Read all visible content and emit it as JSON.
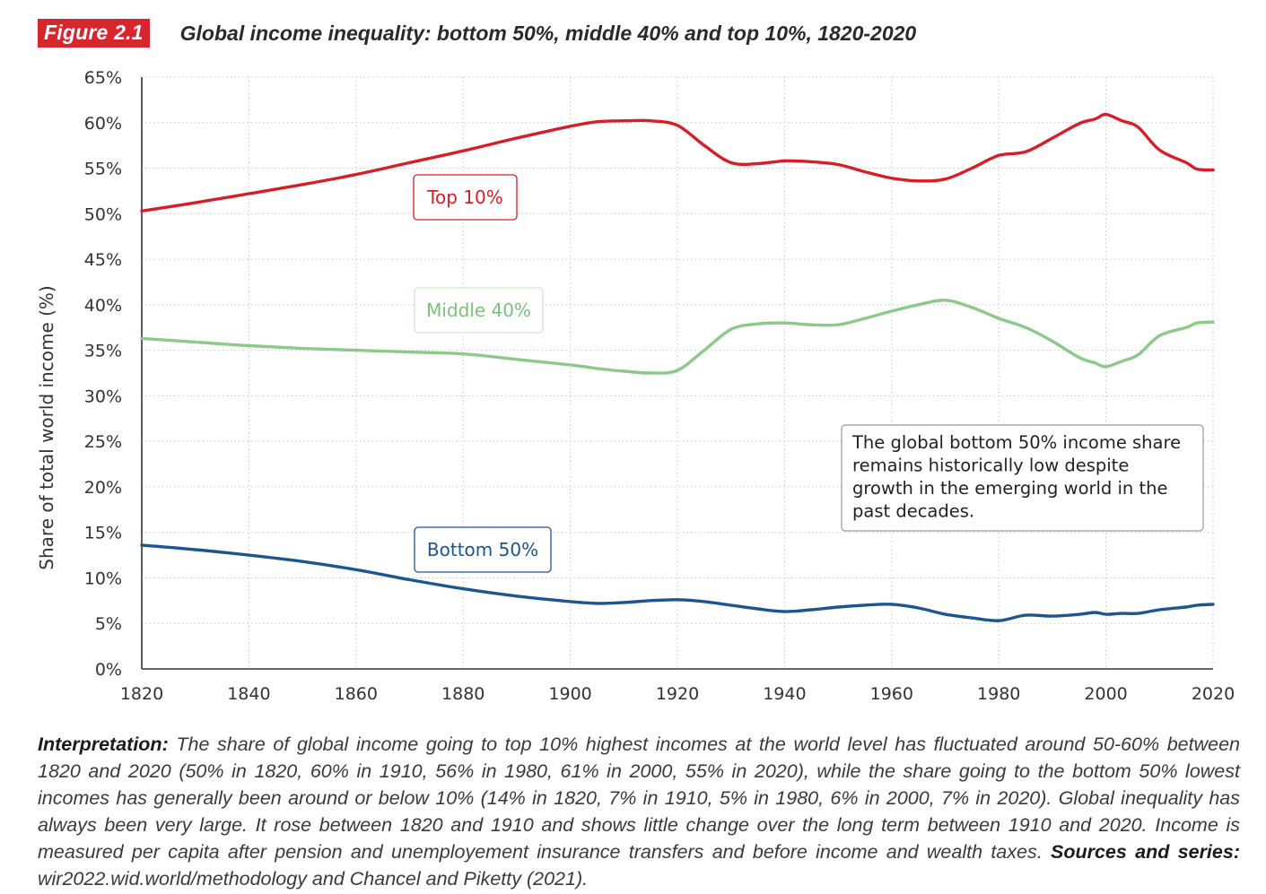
{
  "header": {
    "figure_label": "Figure 2.1",
    "title": "Global income inequality: bottom 50%, middle 40% and top 10%, 1820-2020"
  },
  "colors": {
    "accent": "#d7262e",
    "top10": "#d71e26",
    "middle40": "#8cc98a",
    "bottom50": "#1b5592",
    "grid": "#c8c8c8",
    "axis": "#333333"
  },
  "chart_data": {
    "type": "line",
    "title": "Global income inequality: bottom 50%, middle 40% and top 10%, 1820-2020",
    "xlabel": "",
    "ylabel": "Share of total world income (%)",
    "xlim": [
      1820,
      2020
    ],
    "ylim": [
      0,
      65
    ],
    "x_ticks": [
      "1820",
      "1840",
      "1860",
      "1880",
      "1900",
      "1920",
      "1940",
      "1960",
      "1980",
      "2000",
      "2020"
    ],
    "y_ticks": [
      "0%",
      "5%",
      "10%",
      "15%",
      "20%",
      "25%",
      "30%",
      "35%",
      "40%",
      "45%",
      "50%",
      "55%",
      "60%",
      "65%"
    ],
    "grid": true,
    "series": [
      {
        "name": "Top 10%",
        "color": "#d71e26",
        "x": [
          1820,
          1830,
          1840,
          1850,
          1860,
          1870,
          1880,
          1890,
          1900,
          1905,
          1910,
          1915,
          1920,
          1925,
          1930,
          1935,
          1940,
          1945,
          1950,
          1955,
          1960,
          1965,
          1970,
          1975,
          1980,
          1985,
          1990,
          1995,
          1998,
          2000,
          2003,
          2006,
          2010,
          2015,
          2017,
          2020
        ],
        "values": [
          50.3,
          51.2,
          52.2,
          53.2,
          54.3,
          55.6,
          56.9,
          58.3,
          59.6,
          60.1,
          60.2,
          60.2,
          59.7,
          57.5,
          55.6,
          55.5,
          55.8,
          55.7,
          55.4,
          54.6,
          53.9,
          53.6,
          53.8,
          55.0,
          56.4,
          56.8,
          58.3,
          59.9,
          60.4,
          60.9,
          60.2,
          59.5,
          57.0,
          55.6,
          54.9,
          54.8
        ]
      },
      {
        "name": "Middle 40%",
        "color": "#8cc98a",
        "x": [
          1820,
          1830,
          1840,
          1850,
          1860,
          1870,
          1880,
          1890,
          1900,
          1905,
          1910,
          1915,
          1920,
          1925,
          1930,
          1935,
          1940,
          1945,
          1950,
          1955,
          1960,
          1965,
          1970,
          1975,
          1980,
          1985,
          1990,
          1995,
          1998,
          2000,
          2003,
          2006,
          2010,
          2015,
          2017,
          2020
        ],
        "values": [
          36.3,
          35.9,
          35.5,
          35.2,
          35.0,
          34.8,
          34.6,
          34.0,
          33.4,
          33.0,
          32.7,
          32.5,
          32.8,
          35.0,
          37.3,
          37.9,
          38.0,
          37.8,
          37.8,
          38.5,
          39.3,
          40.0,
          40.5,
          39.7,
          38.5,
          37.5,
          36.0,
          34.2,
          33.6,
          33.2,
          33.8,
          34.5,
          36.6,
          37.5,
          38.0,
          38.1
        ]
      },
      {
        "name": "Bottom 50%",
        "color": "#1b5592",
        "x": [
          1820,
          1830,
          1840,
          1850,
          1860,
          1870,
          1880,
          1890,
          1900,
          1905,
          1910,
          1915,
          1920,
          1925,
          1930,
          1935,
          1940,
          1945,
          1950,
          1955,
          1960,
          1965,
          1970,
          1975,
          1980,
          1985,
          1990,
          1995,
          1998,
          2000,
          2003,
          2006,
          2010,
          2015,
          2017,
          2020
        ],
        "values": [
          13.6,
          13.1,
          12.5,
          11.8,
          10.9,
          9.8,
          8.8,
          8.0,
          7.4,
          7.2,
          7.3,
          7.5,
          7.6,
          7.4,
          7.0,
          6.6,
          6.3,
          6.5,
          6.8,
          7.0,
          7.1,
          6.7,
          6.0,
          5.6,
          5.3,
          5.9,
          5.8,
          6.0,
          6.2,
          6.0,
          6.1,
          6.1,
          6.5,
          6.8,
          7.0,
          7.1
        ]
      }
    ],
    "annotations": {
      "top10_label": "Top 10%",
      "middle40_label": "Middle 40%",
      "bottom50_label": "Bottom 50%",
      "note": "The global bottom 50% income share remains historically low despite growth in the emerging world in the past decades."
    }
  },
  "interpretation": {
    "lead": "Interpretation:",
    "body": " The share of global income going to top 10% highest incomes at the world level has fluctuated around 50-60% between 1820 and 2020 (50% in 1820, 60% in 1910, 56% in 1980, 61% in 2000, 55% in 2020), while the share going to the bottom 50% lowest incomes has generally been around or below 10% (14% in 1820, 7% in 1910, 5% in 1980, 6% in 2000, 7% in 2020). Global inequality has always been very large. It rose between 1820 and 1910 and shows little change over the long term between 1910 and 2020. Income is measured per capita after pension and unemployement insurance transfers and before income and wealth taxes. ",
    "sources_lead": "Sources and series:",
    "sources_body": " wir2022.wid.world/methodology and Chancel and Piketty (2021)."
  }
}
